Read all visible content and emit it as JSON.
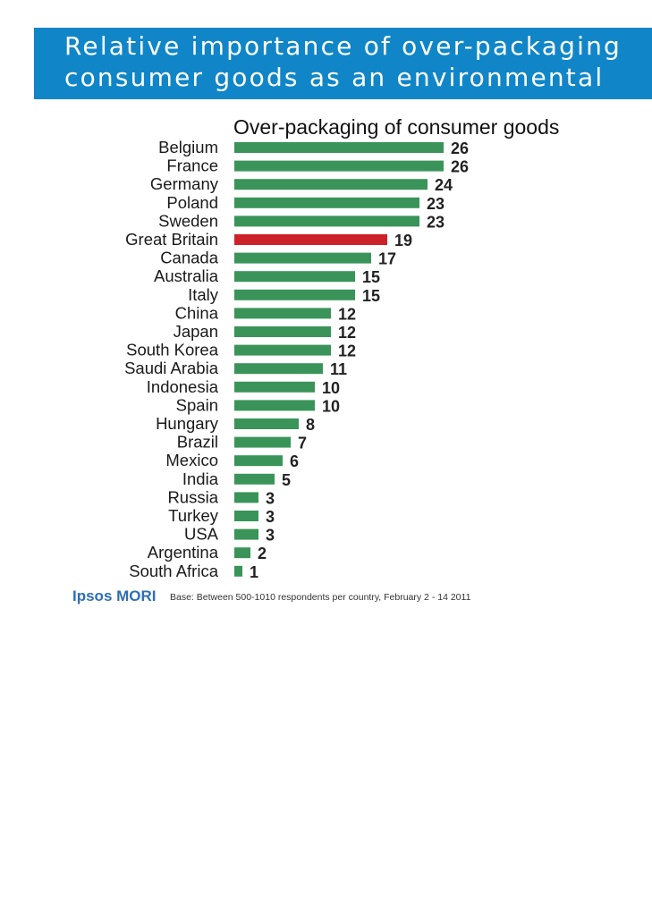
{
  "banner": {
    "line1": "Relative importance of over-packaging",
    "line2": "consumer goods as an environmental"
  },
  "footer": {
    "logo": "Ipsos MORI",
    "base": "Base: Between 500-1010 respondents per country, February 2 - 14 2011"
  },
  "colors": {
    "banner": "#1086c8",
    "bar": "#3a9459",
    "highlight": "#cc2229"
  },
  "chart_data": {
    "type": "bar",
    "orientation": "horizontal",
    "title": "Over-packaging of consumer goods",
    "categories": [
      "Belgium",
      "France",
      "Germany",
      "Poland",
      "Sweden",
      "Great Britain",
      "Canada",
      "Australia",
      "Italy",
      "China",
      "Japan",
      "South Korea",
      "Saudi Arabia",
      "Indonesia",
      "Spain",
      "Hungary",
      "Brazil",
      "Mexico",
      "India",
      "Russia",
      "Turkey",
      "USA",
      "Argentina",
      "South Africa"
    ],
    "values": [
      26,
      26,
      24,
      23,
      23,
      19,
      17,
      15,
      15,
      12,
      12,
      12,
      11,
      10,
      10,
      8,
      7,
      6,
      5,
      3,
      3,
      3,
      2,
      1
    ],
    "highlight": "Great Britain",
    "xlabel": "",
    "ylabel": "",
    "xlim": [
      0,
      26
    ],
    "grid": false
  }
}
